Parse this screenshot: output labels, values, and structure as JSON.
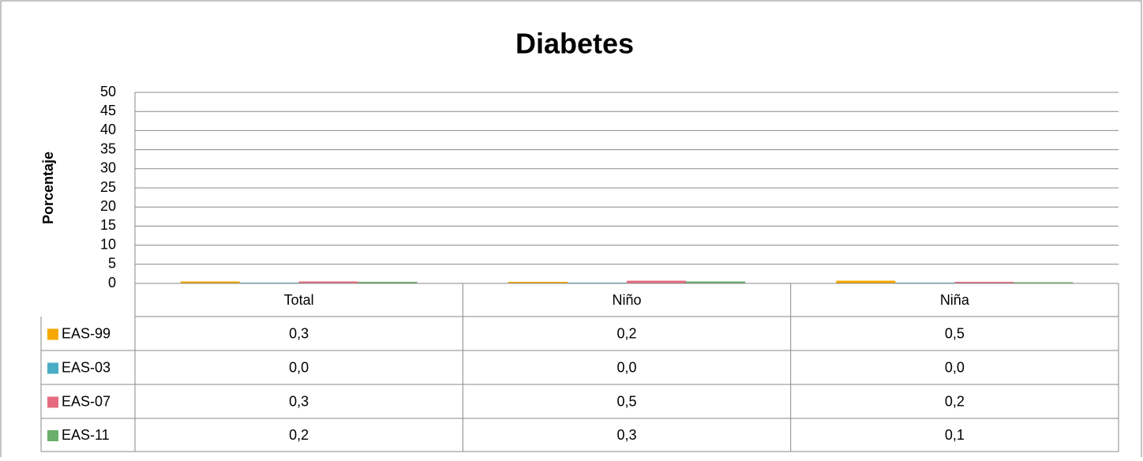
{
  "chart_data": {
    "type": "bar",
    "title": "Diabetes",
    "y_label": "Porcentaje",
    "categories": [
      "Total",
      "Niño",
      "Niña"
    ],
    "series": [
      {
        "name": "EAS-99",
        "color": "#f5a800",
        "values": [
          0.3,
          0.2,
          0.5
        ],
        "value_labels": [
          "0,3",
          "0,2",
          "0,5"
        ]
      },
      {
        "name": "EAS-03",
        "color": "#4bacc6",
        "values": [
          0.0,
          0.0,
          0.0
        ],
        "value_labels": [
          "0,0",
          "0,0",
          "0,0"
        ]
      },
      {
        "name": "EAS-07",
        "color": "#e46c7e",
        "values": [
          0.3,
          0.5,
          0.2
        ],
        "value_labels": [
          "0,3",
          "0,5",
          "0,2"
        ]
      },
      {
        "name": "EAS-11",
        "color": "#6aaf6a",
        "values": [
          0.2,
          0.3,
          0.1
        ],
        "value_labels": [
          "0,2",
          "0,3",
          "0,1"
        ]
      }
    ],
    "ylim": [
      0,
      50
    ],
    "yticks": [
      0,
      5,
      10,
      15,
      20,
      25,
      30,
      35,
      40,
      45,
      50
    ],
    "grid": true
  }
}
